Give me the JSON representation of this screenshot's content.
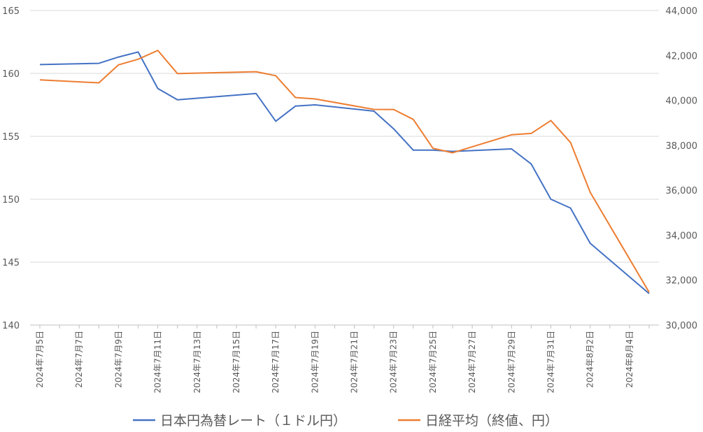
{
  "chart_data": {
    "type": "line",
    "title": "",
    "x_ticks": [
      "2024年7月5日",
      "2024年7月7日",
      "2024年7月9日",
      "2024年7月11日",
      "2024年7月13日",
      "2024年7月15日",
      "2024年7月17日",
      "2024年7月19日",
      "2024年7月21日",
      "2024年7月23日",
      "2024年7月25日",
      "2024年7月27日",
      "2024年7月29日",
      "2024年7月31日",
      "2024年8月2日",
      "2024年8月4日"
    ],
    "x_range": [
      "2024-07-05",
      "2024-08-05"
    ],
    "y_left": {
      "min": 140,
      "max": 165,
      "ticks": [
        "140",
        "145",
        "150",
        "155",
        "160",
        "165"
      ]
    },
    "y_right": {
      "min": 30000,
      "max": 44000,
      "ticks": [
        "30,000",
        "32,000",
        "34,000",
        "36,000",
        "38,000",
        "40,000",
        "42,000",
        "44,000"
      ]
    },
    "grid": true,
    "legend_position": "bottom",
    "series": [
      {
        "name": "日本円為替レート（１ドル円）",
        "axis": "left",
        "color": "#4472C4",
        "x": [
          "2024-07-05",
          "2024-07-08",
          "2024-07-09",
          "2024-07-10",
          "2024-07-11",
          "2024-07-12",
          "2024-07-16",
          "2024-07-17",
          "2024-07-18",
          "2024-07-19",
          "2024-07-22",
          "2024-07-23",
          "2024-07-24",
          "2024-07-25",
          "2024-07-26",
          "2024-07-29",
          "2024-07-30",
          "2024-07-31",
          "2024-08-01",
          "2024-08-02",
          "2024-08-05"
        ],
        "values": [
          160.7,
          160.8,
          161.3,
          161.7,
          158.8,
          157.9,
          158.4,
          156.2,
          157.4,
          157.5,
          157.0,
          155.6,
          153.9,
          153.9,
          153.8,
          154.0,
          152.8,
          150.0,
          149.3,
          146.5,
          142.5
        ]
      },
      {
        "name": "日経平均（終値、円）",
        "axis": "right",
        "color": "#ED7D31",
        "x": [
          "2024-07-05",
          "2024-07-08",
          "2024-07-09",
          "2024-07-10",
          "2024-07-11",
          "2024-07-12",
          "2024-07-16",
          "2024-07-17",
          "2024-07-18",
          "2024-07-19",
          "2024-07-22",
          "2024-07-23",
          "2024-07-24",
          "2024-07-25",
          "2024-07-26",
          "2024-07-29",
          "2024-07-30",
          "2024-07-31",
          "2024-08-01",
          "2024-08-02",
          "2024-08-05"
        ],
        "values": [
          40913,
          40780,
          41580,
          41831,
          42224,
          41190,
          41275,
          41098,
          40126,
          40063,
          39599,
          39594,
          39154,
          37869,
          37667,
          38469,
          38526,
          39102,
          38126,
          35910,
          31458
        ]
      }
    ]
  }
}
